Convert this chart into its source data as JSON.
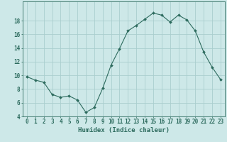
{
  "x": [
    0,
    1,
    2,
    3,
    4,
    5,
    6,
    7,
    8,
    9,
    10,
    11,
    12,
    13,
    14,
    15,
    16,
    17,
    18,
    19,
    20,
    21,
    22,
    23
  ],
  "y": [
    9.8,
    9.3,
    9.0,
    7.2,
    6.8,
    7.0,
    6.4,
    4.6,
    5.3,
    8.1,
    11.5,
    13.9,
    16.5,
    17.3,
    18.2,
    19.1,
    18.8,
    17.8,
    18.8,
    18.1,
    16.5,
    13.4,
    11.2,
    9.4
  ],
  "line_color": "#2d6b5e",
  "marker": "D",
  "marker_size": 2.0,
  "bg_color": "#cde8e8",
  "grid_color": "#aacece",
  "axis_color": "#2d6b5e",
  "xlabel": "Humidex (Indice chaleur)",
  "ylim": [
    4,
    20
  ],
  "xlim": [
    -0.5,
    23.5
  ],
  "yticks": [
    4,
    6,
    8,
    10,
    12,
    14,
    16,
    18
  ],
  "xticks": [
    0,
    1,
    2,
    3,
    4,
    5,
    6,
    7,
    8,
    9,
    10,
    11,
    12,
    13,
    14,
    15,
    16,
    17,
    18,
    19,
    20,
    21,
    22,
    23
  ],
  "xlabel_fontsize": 6.5,
  "tick_fontsize": 5.5
}
